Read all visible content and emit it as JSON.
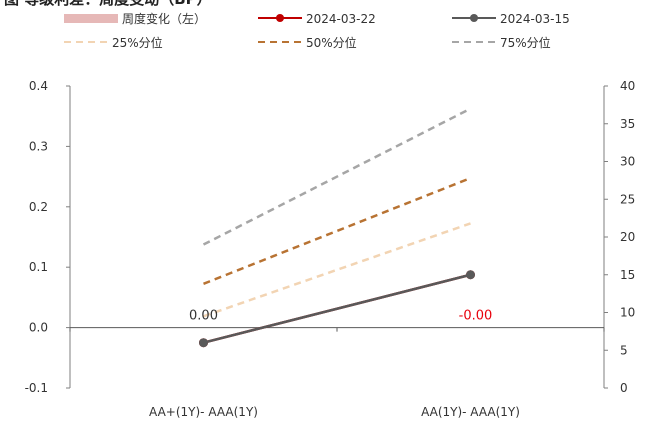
{
  "chart_data": {
    "type": "line",
    "title": "图      等级利差：周度变动（BP）",
    "categories": [
      "AA+(1Y)- AAA(1Y)",
      "AA(1Y)- AAA(1Y)"
    ],
    "left_axis": {
      "min": -0.1,
      "max": 0.4,
      "step": 0.1,
      "tick_labels": [
        "-0.1",
        "0.0",
        "0.1",
        "0.2",
        "0.3",
        "0.4"
      ]
    },
    "right_axis": {
      "min": 0,
      "max": 40,
      "step": 5,
      "tick_labels": [
        "0",
        "5",
        "10",
        "15",
        "20",
        "25",
        "30",
        "35",
        "40"
      ]
    },
    "bar_series": {
      "name": "周度变化（左）",
      "axis": "left",
      "values": [
        0.0,
        -0.0
      ],
      "data_labels": [
        "0.00",
        "-0.00"
      ],
      "label_colors": [
        "#333333",
        "#e8000b"
      ],
      "color": "#e6b8b7"
    },
    "series": [
      {
        "name": "2024-03-22",
        "axis": "right",
        "values": [
          6.0,
          15.0
        ],
        "color": "#c00000",
        "style": "solid-marker"
      },
      {
        "name": "2024-03-15",
        "axis": "right",
        "values": [
          6.0,
          15.0
        ],
        "color": "#595959",
        "style": "solid-marker"
      },
      {
        "name": "25%分位",
        "axis": "right",
        "values": [
          9.5,
          21.8
        ],
        "color": "#f2d4b3",
        "style": "dashed"
      },
      {
        "name": "50%分位",
        "axis": "right",
        "values": [
          13.8,
          27.8
        ],
        "color": "#b87333",
        "style": "dashed"
      },
      {
        "name": "75%分位",
        "axis": "right",
        "values": [
          19.0,
          37.0
        ],
        "color": "#a6a6a6",
        "style": "dashed"
      }
    ],
    "legend_position": "top",
    "grid": false
  }
}
